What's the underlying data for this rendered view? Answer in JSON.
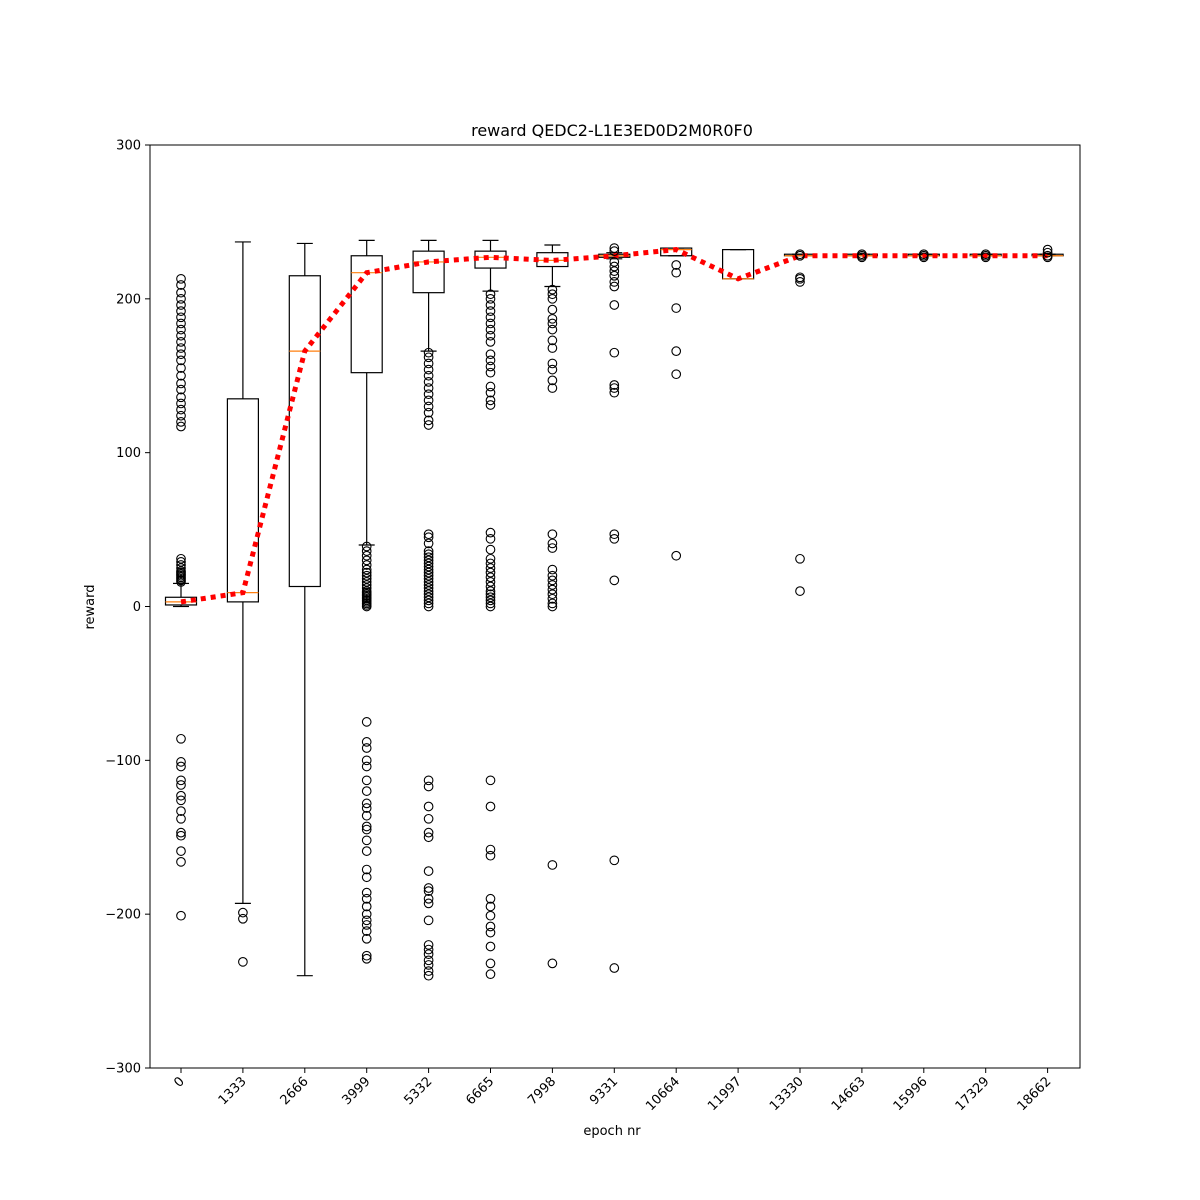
{
  "chart_data": {
    "type": "box",
    "title": "reward QEDC2-L1E3ED0D2M0R0F0",
    "xlabel": "epoch nr",
    "ylabel": "reward",
    "ylim": [
      -300,
      300
    ],
    "yticks": [
      -300,
      -200,
      -100,
      0,
      100,
      200,
      300
    ],
    "ytick_labels": [
      "−300",
      "−200",
      "−100",
      "0",
      "100",
      "200",
      "300"
    ],
    "categories": [
      "0",
      "1333",
      "2666",
      "3999",
      "5332",
      "6665",
      "7998",
      "9331",
      "10664",
      "11997",
      "13330",
      "14663",
      "15996",
      "17329",
      "18662"
    ],
    "boxes": [
      {
        "q1": 1,
        "median": 3,
        "q3": 6,
        "whisker_low": 0,
        "whisker_high": 15,
        "outliers": [
          16,
          17,
          18,
          19,
          20,
          21,
          22,
          23,
          25,
          27,
          29,
          31,
          117,
          120,
          124,
          128,
          132,
          136,
          141,
          145,
          150,
          155,
          160,
          164,
          168,
          172,
          176,
          180,
          184,
          188,
          192,
          196,
          200,
          204,
          209,
          213,
          -86,
          -101,
          -104,
          -113,
          -116,
          -123,
          -126,
          -133,
          -138,
          -147,
          -149,
          -159,
          -166,
          -201
        ]
      },
      {
        "q1": 3,
        "median": 9,
        "q3": 135,
        "whisker_low": -193,
        "whisker_high": 237,
        "outliers": [
          -199,
          -203,
          -231
        ]
      },
      {
        "q1": 13,
        "median": 166,
        "q3": 215,
        "whisker_low": -240,
        "whisker_high": 236,
        "outliers": []
      },
      {
        "q1": 152,
        "median": 217,
        "q3": 228,
        "whisker_low": 40,
        "whisker_high": 238,
        "outliers": [
          0,
          1,
          2,
          3,
          4,
          5,
          6,
          7,
          8,
          9,
          10,
          12,
          14,
          16,
          18,
          20,
          22,
          24,
          27,
          30,
          33,
          36,
          39,
          -75,
          -88,
          -92,
          -100,
          -104,
          -113,
          -120,
          -128,
          -131,
          -136,
          -143,
          -145,
          -152,
          -159,
          -171,
          -176,
          -186,
          -190,
          -195,
          -200,
          -204,
          -207,
          -211,
          -216,
          -227,
          -229
        ]
      },
      {
        "q1": 204,
        "median": 224,
        "q3": 231,
        "whisker_low": 166,
        "whisker_high": 238,
        "outliers": [
          0,
          2,
          4,
          6,
          8,
          10,
          12,
          14,
          16,
          18,
          20,
          22,
          24,
          26,
          28,
          30,
          32,
          34,
          36,
          41,
          45,
          47,
          118,
          121,
          126,
          130,
          134,
          138,
          142,
          146,
          150,
          154,
          158,
          162,
          165,
          -113,
          -117,
          -130,
          -138,
          -147,
          -150,
          -172,
          -183,
          -185,
          -190,
          -193,
          -204,
          -220,
          -223,
          -226,
          -230,
          -233,
          -237,
          -240
        ]
      },
      {
        "q1": 220,
        "median": 227,
        "q3": 231,
        "whisker_low": 205,
        "whisker_high": 238,
        "outliers": [
          0,
          2,
          4,
          6,
          8,
          10,
          13,
          16,
          19,
          22,
          25,
          28,
          31,
          37,
          44,
          48,
          131,
          134,
          139,
          143,
          152,
          156,
          160,
          164,
          172,
          176,
          180,
          184,
          188,
          192,
          196,
          200,
          203,
          -113,
          -130,
          -158,
          -162,
          -190,
          -195,
          -201,
          -208,
          -212,
          -221,
          -232,
          -239
        ]
      },
      {
        "q1": 221,
        "median": 225,
        "q3": 230,
        "whisker_low": 208,
        "whisker_high": 235,
        "outliers": [
          0,
          2,
          5,
          8,
          11,
          14,
          17,
          20,
          24,
          38,
          41,
          47,
          142,
          147,
          154,
          158,
          168,
          173,
          180,
          184,
          187,
          193,
          200,
          203,
          206,
          -168,
          -232
        ]
      },
      {
        "q1": 227,
        "median": 228,
        "q3": 229,
        "whisker_low": 226,
        "whisker_high": 230,
        "outliers": [
          17,
          44,
          47,
          139,
          142,
          144,
          165,
          196,
          208,
          211,
          215,
          218,
          221,
          224,
          231,
          233,
          -165,
          -235
        ]
      },
      {
        "q1": 228,
        "median": 232,
        "q3": 233,
        "whisker_low": 228,
        "whisker_high": 233,
        "outliers": [
          33,
          151,
          166,
          194,
          217,
          222
        ]
      },
      {
        "q1": 213,
        "median": 213,
        "q3": 232,
        "whisker_low": 213,
        "whisker_high": 232,
        "outliers": []
      },
      {
        "q1": 228,
        "median": 228,
        "q3": 229,
        "whisker_low": 228,
        "whisker_high": 229,
        "outliers": [
          10,
          31,
          211,
          213,
          214,
          228,
          229
        ]
      },
      {
        "q1": 228,
        "median": 228,
        "q3": 229,
        "whisker_low": 228,
        "whisker_high": 229,
        "outliers": [
          227,
          228,
          229
        ]
      },
      {
        "q1": 228,
        "median": 228,
        "q3": 229,
        "whisker_low": 228,
        "whisker_high": 229,
        "outliers": [
          227,
          228,
          229
        ]
      },
      {
        "q1": 228,
        "median": 228,
        "q3": 229,
        "whisker_low": 228,
        "whisker_high": 229,
        "outliers": [
          227,
          228,
          229
        ]
      },
      {
        "q1": 228,
        "median": 228,
        "q3": 229,
        "whisker_low": 228,
        "whisker_high": 229,
        "outliers": [
          227,
          228,
          230,
          232
        ]
      }
    ],
    "mean_line": {
      "values": [
        3,
        9,
        166,
        217,
        224,
        227,
        225,
        228,
        232,
        213,
        228,
        228,
        228,
        228,
        228
      ],
      "color": "#ff0000",
      "style": "dotted"
    },
    "colors": {
      "box": "#000000",
      "median": "#ff7f0e",
      "mean_line": "#ff0000",
      "outlier": "#000000"
    },
    "grid": false,
    "legend": "none"
  }
}
